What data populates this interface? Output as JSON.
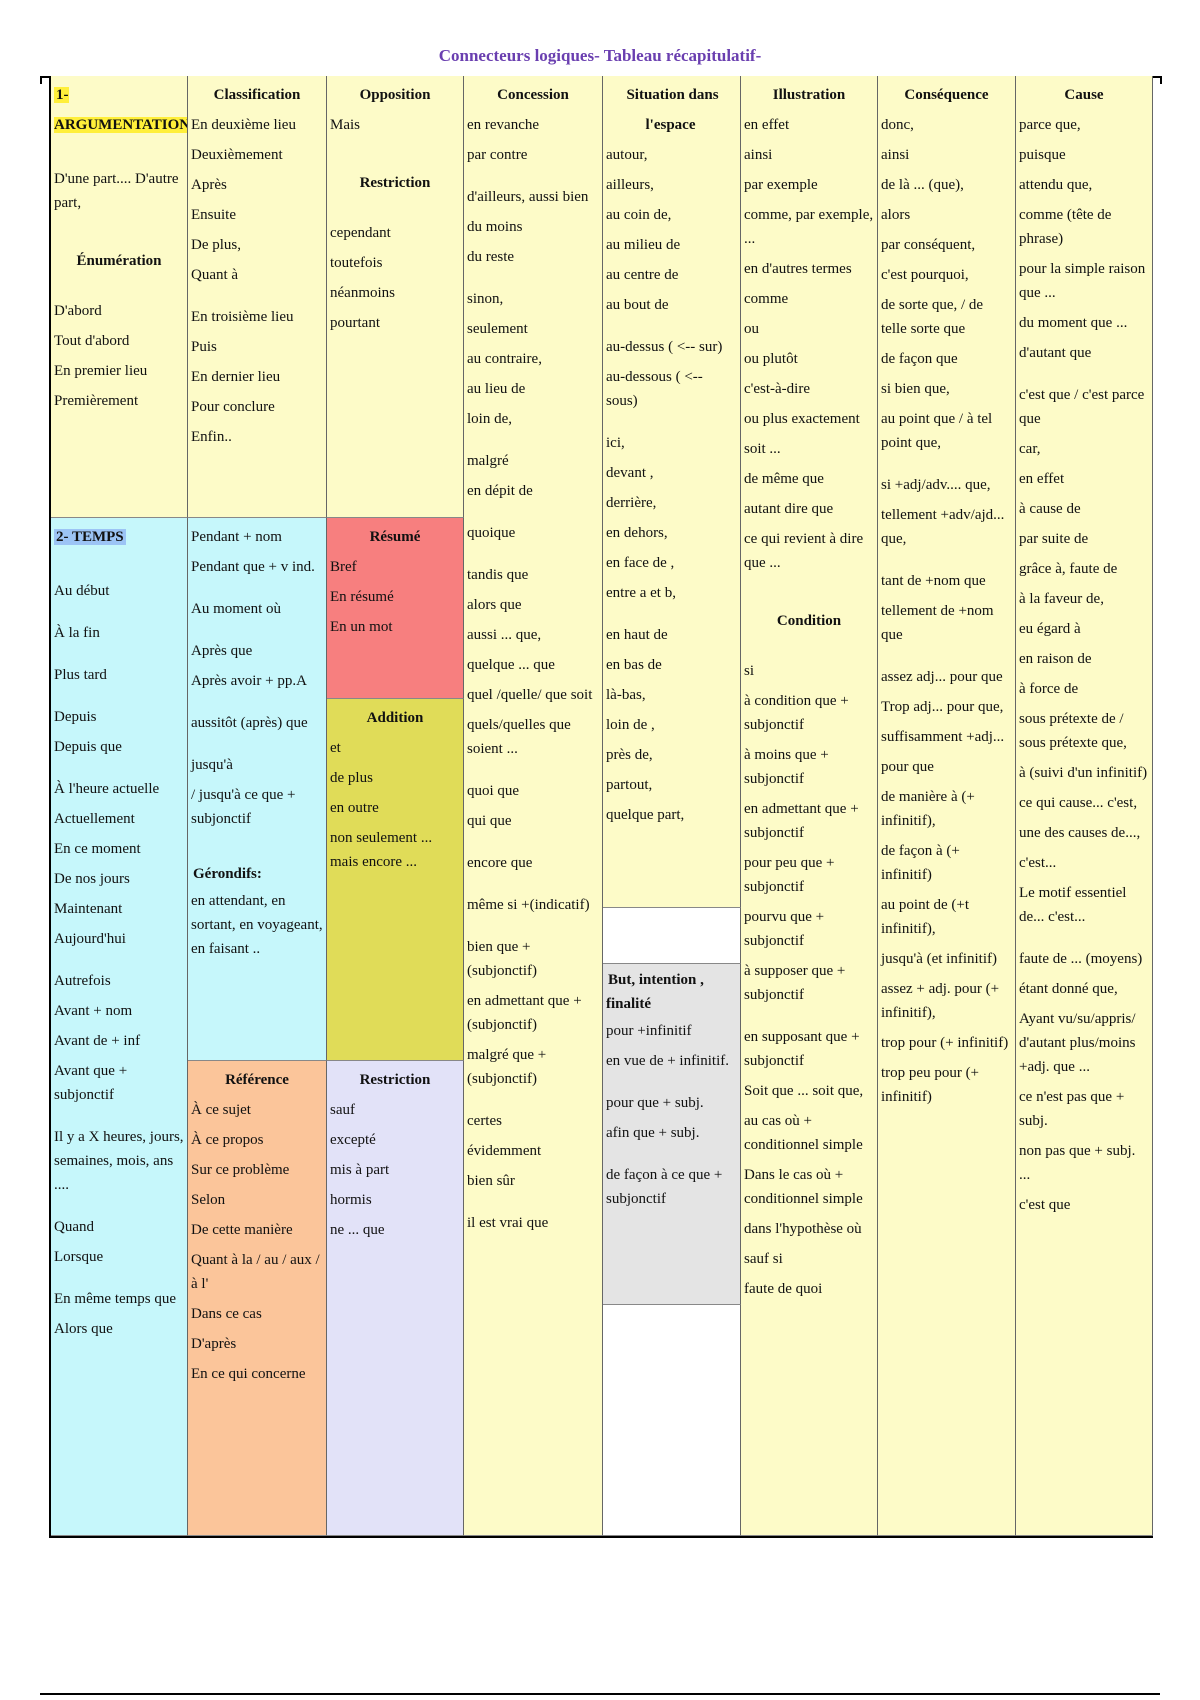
{
  "title": "Connecteurs logiques- Tableau récapitulatif-",
  "columns": [
    {
      "blocks": [
        {
          "sections": [
            {
              "heading": "1-ARGUMENTATION",
              "groups": [
                [
                  "D'une part.... D'autre part,"
                ]
              ]
            },
            {
              "heading": "Énumération",
              "groups": [
                [
                  "D'abord",
                  "Tout d'abord",
                  "En premier lieu",
                  "Premièrement"
                ]
              ]
            }
          ]
        },
        {
          "sections": [
            {
              "heading": "2- TEMPS",
              "groups": [
                [
                  "Au début"
                ],
                [
                  "À la fin"
                ],
                [
                  "Plus tard"
                ],
                [
                  "Depuis",
                  "Depuis que"
                ],
                [
                  "À l'heure actuelle",
                  "Actuellement",
                  "En ce moment",
                  "De nos jours",
                  "Maintenant",
                  "Aujourd'hui"
                ],
                [
                  "Autrefois",
                  "Avant + nom",
                  "Avant de + inf",
                  "Avant que + subjonctif"
                ],
                [
                  "Il y a X heures, jours, semaines, mois, ans ...."
                ],
                [
                  "Quand",
                  "Lorsque"
                ],
                [
                  "En même temps que",
                  "Alors que"
                ]
              ]
            }
          ]
        }
      ]
    },
    {
      "blocks": [
        {
          "sections": [
            {
              "heading": "Classification",
              "groups": [
                [
                  "En deuxième lieu",
                  "Deuxièmement",
                  "Après",
                  "Ensuite",
                  "De plus,",
                  "Quant à"
                ],
                [
                  "En troisième lieu",
                  "Puis",
                  "En dernier lieu",
                  "Pour conclure",
                  "Enfin.."
                ]
              ]
            }
          ]
        },
        {
          "sections": [
            {
              "groups": [
                [
                  "Pendant + nom",
                  "Pendant que + v ind."
                ],
                [
                  "Au moment où"
                ],
                [
                  "Après que",
                  "Après avoir + pp.A"
                ],
                [
                  "aussitôt (après) que"
                ],
                [
                  "jusqu'à",
                  "/ jusqu'à ce que + subjonctif"
                ]
              ]
            },
            {
              "heading": "Gérondifs:",
              "groups": [
                [
                  "en attendant, en sortant, en voyageant, en faisant .."
                ]
              ]
            }
          ]
        },
        {
          "sections": [
            {
              "heading": "Référence",
              "groups": [
                [
                  "À ce sujet",
                  "À ce propos",
                  "Sur ce problème",
                  "Selon",
                  "De cette manière",
                  "Quant à la / au / aux / à l'",
                  "Dans ce cas",
                  "D'après",
                  "En ce qui concerne"
                ]
              ]
            }
          ]
        }
      ]
    },
    {
      "blocks": [
        {
          "sections": [
            {
              "heading": "Opposition",
              "groups": [
                [
                  "Mais"
                ]
              ]
            },
            {
              "heading": "Restriction",
              "groups": [
                [
                  "cependant",
                  "toutefois",
                  "néanmoins",
                  "pourtant"
                ]
              ]
            }
          ]
        },
        {
          "sections": [
            {
              "heading": "Résumé",
              "groups": [
                [
                  "Bref",
                  "En résumé",
                  "En un mot"
                ]
              ]
            }
          ]
        },
        {
          "sections": [
            {
              "heading": "Addition",
              "groups": [
                [
                  "et",
                  "de plus",
                  "en outre",
                  "non seulement ... mais encore ..."
                ]
              ]
            }
          ]
        },
        {
          "sections": [
            {
              "heading": "Restriction",
              "groups": [
                [
                  "sauf",
                  "excepté",
                  "mis à part",
                  "hormis",
                  "ne ... que"
                ]
              ]
            }
          ]
        }
      ]
    },
    {
      "blocks": [
        {
          "sections": [
            {
              "heading": "Concession",
              "groups": [
                [
                  "en revanche",
                  "par contre"
                ],
                [
                  "d'ailleurs, aussi bien",
                  "du moins",
                  "du reste"
                ],
                [
                  "sinon,",
                  "seulement",
                  "au contraire,",
                  "au lieu de",
                  "loin de,"
                ],
                [
                  "malgré",
                  "en dépit de"
                ],
                [
                  "quoique"
                ],
                [
                  "tandis que",
                  "alors que",
                  "aussi ... que,",
                  "quelque ... que",
                  "quel /quelle/ que soit",
                  "quels/quelles que soient ..."
                ],
                [
                  "quoi que",
                  "qui que"
                ],
                [
                  "encore que"
                ],
                [
                  "même si +(indicatif)"
                ],
                [
                  "bien que + (subjonctif)",
                  "en admettant que +(subjonctif)",
                  "malgré que +(subjonctif)"
                ],
                [
                  "certes",
                  "évidemment",
                  "bien sûr"
                ],
                [
                  "il est vrai que"
                ]
              ]
            }
          ]
        }
      ]
    },
    {
      "blocks": [
        {
          "sections": [
            {
              "heading": "Situation dans l'espace",
              "groups": [
                [
                  "autour,",
                  "ailleurs,",
                  "au coin de,",
                  "au milieu de",
                  "au centre de",
                  "au bout de"
                ],
                [
                  "au-dessus ( <-- sur)",
                  "au-dessous ( <-- sous)"
                ],
                [
                  "ici,",
                  "devant ,",
                  "derrière,",
                  "en dehors,",
                  "en face de ,",
                  "entre a et b,"
                ],
                [
                  "en haut de",
                  "en bas de",
                  "là-bas,",
                  "loin de ,",
                  "près de,",
                  "partout,",
                  "quelque part,"
                ]
              ]
            }
          ]
        },
        {
          "sections": [
            {
              "heading": "But, intention , finalité",
              "groups": [
                [
                  "pour +infinitif",
                  "en vue de + infinitif."
                ],
                [
                  "pour que + subj.",
                  "afin que + subj."
                ],
                [
                  "de façon à ce que + subjonctif"
                ]
              ]
            }
          ]
        }
      ]
    },
    {
      "blocks": [
        {
          "sections": [
            {
              "heading": "Illustration",
              "groups": [
                [
                  "en effet",
                  "ainsi",
                  "par exemple",
                  "comme, par exemple, ...",
                  "en d'autres termes",
                  "comme",
                  "ou",
                  "ou plutôt",
                  "c'est-à-dire",
                  "ou plus exactement",
                  "soit ...",
                  "de même que",
                  "autant dire que",
                  "ce qui revient à dire que ..."
                ]
              ]
            },
            {
              "heading": "Condition",
              "groups": [
                [
                  "si",
                  "à condition que + subjonctif",
                  "à moins que + subjonctif",
                  "en admettant que + subjonctif",
                  "pour peu que + subjonctif",
                  "pourvu que + subjonctif",
                  "à supposer que + subjonctif"
                ],
                [
                  "en supposant que + subjonctif",
                  "Soit que ... soit que,",
                  "au cas où + conditionnel simple",
                  "Dans le cas où + conditionnel simple",
                  "dans l'hypothèse où",
                  "sauf si",
                  "faute de quoi"
                ]
              ]
            }
          ]
        }
      ]
    },
    {
      "blocks": [
        {
          "sections": [
            {
              "heading": "Conséquence",
              "groups": [
                [
                  "donc,",
                  "ainsi",
                  "de là ... (que),",
                  "alors",
                  "par conséquent,",
                  "c'est pourquoi,",
                  "de sorte que, / de telle sorte que",
                  "de façon que",
                  "si bien que,",
                  "au point que / à tel point que,"
                ],
                [
                  "si +adj/adv.... que,",
                  "tellement +adv/ajd... que,"
                ],
                [
                  "tant de +nom que",
                  "tellement de +nom que"
                ],
                [
                  "assez adj... pour que",
                  "Trop adj... pour que,",
                  "suffisamment +adj...",
                  "pour que",
                  "de manière à (+ infinitif),",
                  "de façon à (+ infinitif)",
                  "au point de (+t infinitif),",
                  "jusqu'à (et infinitif)",
                  "assez + adj. pour (+ infinitif),",
                  "trop pour (+ infinitif)",
                  "trop peu pour (+ infinitif)"
                ]
              ]
            }
          ]
        }
      ]
    },
    {
      "blocks": [
        {
          "sections": [
            {
              "heading": "Cause",
              "groups": [
                [
                  "parce que,",
                  "puisque",
                  "attendu que,",
                  "comme (tête de phrase)",
                  "pour la simple raison que ...",
                  "du moment que ...",
                  "d'autant que"
                ],
                [
                  "c'est que / c'est parce que",
                  "car,",
                  "en effet",
                  "à cause de",
                  "par suite de",
                  "grâce à, faute de",
                  "à la faveur de,",
                  "eu égard à",
                  "en raison de",
                  "à force de",
                  "sous prétexte de / sous prétexte que,",
                  "à (suivi d'un infinitif)",
                  "ce qui cause... c'est,",
                  "une des causes de...,",
                  "c'est...",
                  "Le motif essentiel de... c'est..."
                ],
                [
                  "faute de ... (moyens)",
                  "étant donné que,",
                  "Ayant vu/su/appris/ d'autant plus/moins +adj. que ...",
                  "ce n'est pas que + subj.",
                  "non pas que + subj. ...",
                  "c'est que"
                ]
              ]
            }
          ]
        }
      ]
    }
  ]
}
